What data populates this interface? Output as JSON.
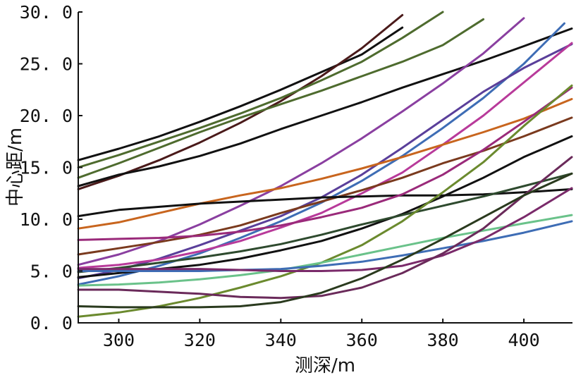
{
  "chart_data": {
    "type": "line",
    "xlabel": "测深/m",
    "ylabel": "中心距/m",
    "xlim": [
      290,
      412
    ],
    "ylim": [
      0,
      30
    ],
    "xticks": [
      300,
      320,
      340,
      360,
      380,
      400
    ],
    "yticks": [
      0,
      5,
      10,
      15,
      20,
      25,
      30
    ],
    "xtick_labels": [
      "300",
      "320",
      "340",
      "360",
      "380",
      "400"
    ],
    "ytick_labels": [
      "0. 0",
      "5. 0",
      "10. 0",
      "15. 0",
      "20. 0",
      "25. 0",
      "30. 0"
    ],
    "grid": false,
    "series": [
      {
        "color": "#111111",
        "x": [
          290,
          300,
          310,
          320,
          330,
          340,
          350,
          360,
          370
        ],
        "y": [
          15.7,
          16.8,
          18.0,
          19.4,
          20.9,
          22.5,
          24.2,
          25.9,
          28.5
        ]
      },
      {
        "color": "#4a1a1a",
        "x": [
          290,
          300,
          310,
          320,
          330,
          340,
          350,
          360,
          370
        ],
        "y": [
          12.9,
          14.2,
          15.7,
          17.4,
          19.3,
          21.4,
          23.8,
          26.5,
          29.7
        ]
      },
      {
        "color": "#4e6b2e",
        "x": [
          290,
          300,
          310,
          320,
          330,
          340,
          350,
          360,
          370,
          380
        ],
        "y": [
          15.0,
          16.2,
          17.5,
          18.8,
          20.2,
          21.7,
          23.4,
          25.2,
          27.5,
          30.0
        ]
      },
      {
        "color": "#4e6b2e",
        "x": [
          290,
          300,
          310,
          320,
          330,
          340,
          350,
          360,
          370,
          380,
          390
        ],
        "y": [
          14.0,
          15.4,
          16.9,
          18.4,
          19.8,
          21.1,
          22.4,
          23.8,
          25.2,
          26.8,
          29.3
        ]
      },
      {
        "color": "#111111",
        "x": [
          290,
          300,
          310,
          320,
          330,
          340,
          350,
          360,
          370,
          380,
          390,
          400,
          412
        ],
        "y": [
          13.2,
          14.3,
          15.1,
          16.1,
          17.3,
          18.7,
          20.0,
          21.3,
          22.7,
          24.0,
          25.3,
          26.7,
          28.4
        ]
      },
      {
        "color": "#8a3fa0",
        "x": [
          290,
          300,
          310,
          320,
          330,
          340,
          350,
          360,
          370,
          380,
          390,
          400
        ],
        "y": [
          5.6,
          6.6,
          7.9,
          9.5,
          11.3,
          13.2,
          15.4,
          17.8,
          20.4,
          23.1,
          26.0,
          29.4
        ]
      },
      {
        "color": "#3e6db5",
        "x": [
          290,
          300,
          310,
          320,
          330,
          340,
          350,
          360,
          370,
          380,
          390,
          400,
          410
        ],
        "y": [
          3.7,
          4.5,
          5.5,
          6.7,
          8.2,
          9.8,
          11.6,
          13.7,
          16.1,
          18.8,
          21.7,
          25.0,
          28.9
        ]
      },
      {
        "color": "#5a3f9a",
        "x": [
          290,
          300,
          310,
          320,
          330,
          340,
          350,
          360,
          370,
          380,
          390,
          400,
          412
        ],
        "y": [
          4.3,
          5.1,
          6.2,
          7.5,
          8.9,
          10.3,
          12.1,
          14.3,
          16.9,
          19.6,
          22.3,
          24.6,
          26.9
        ]
      },
      {
        "color": "#b83a9a",
        "x": [
          290,
          300,
          310,
          320,
          330,
          340,
          350,
          360,
          370,
          380,
          390,
          400,
          412
        ],
        "y": [
          5.3,
          5.6,
          6.1,
          6.9,
          7.9,
          9.2,
          10.6,
          12.5,
          14.5,
          17.2,
          20.0,
          23.2,
          27.0
        ]
      },
      {
        "color": "#c8651e",
        "x": [
          290,
          300,
          310,
          320,
          330,
          340,
          350,
          360,
          370,
          380,
          390,
          400,
          412
        ],
        "y": [
          9.1,
          9.7,
          10.6,
          11.5,
          12.3,
          13.0,
          13.9,
          14.9,
          16.0,
          17.2,
          18.4,
          19.7,
          21.6
        ]
      },
      {
        "color": "#7a3a1e",
        "x": [
          290,
          300,
          310,
          320,
          330,
          340,
          350,
          360,
          370,
          380,
          390,
          400,
          412
        ],
        "y": [
          6.6,
          7.2,
          7.8,
          8.5,
          9.4,
          10.6,
          11.7,
          12.8,
          14.0,
          15.4,
          16.6,
          18.0,
          19.8
        ]
      },
      {
        "color": "#111111",
        "x": [
          290,
          300,
          310,
          320,
          330,
          340,
          350,
          360,
          370,
          380,
          390,
          400,
          412
        ],
        "y": [
          10.3,
          10.9,
          11.2,
          11.5,
          11.7,
          11.9,
          12.1,
          12.2,
          12.3,
          12.3,
          12.4,
          12.6,
          12.9
        ]
      },
      {
        "color": "#9a2a7a",
        "x": [
          290,
          300,
          310,
          320,
          330,
          340,
          350,
          360,
          370,
          380,
          390,
          400,
          412
        ],
        "y": [
          8.0,
          8.1,
          8.2,
          8.4,
          8.8,
          9.4,
          10.2,
          11.1,
          12.4,
          14.3,
          16.7,
          19.4,
          22.7
        ]
      },
      {
        "color": "#111111",
        "x": [
          290,
          300,
          310,
          320,
          330,
          340,
          350,
          360,
          370,
          380,
          390,
          400,
          412
        ],
        "y": [
          4.4,
          4.8,
          5.2,
          5.6,
          6.2,
          7.0,
          7.9,
          9.1,
          10.5,
          12.2,
          14.0,
          16.0,
          18.0
        ]
      },
      {
        "color": "#2e4a2e",
        "x": [
          290,
          300,
          310,
          320,
          330,
          340,
          350,
          360,
          370,
          380,
          390,
          400,
          412
        ],
        "y": [
          4.9,
          5.3,
          5.8,
          6.3,
          6.9,
          7.6,
          8.5,
          9.5,
          10.4,
          11.3,
          12.2,
          13.2,
          14.4
        ]
      },
      {
        "color": "#6b8a2e",
        "x": [
          290,
          300,
          310,
          320,
          330,
          340,
          350,
          360,
          370,
          380,
          390,
          400,
          412
        ],
        "y": [
          0.6,
          1.0,
          1.6,
          2.4,
          3.4,
          4.5,
          5.8,
          7.5,
          9.8,
          12.6,
          15.5,
          19.0,
          22.9
        ]
      },
      {
        "color": "#6ac28a",
        "x": [
          290,
          300,
          310,
          320,
          330,
          340,
          350,
          360,
          370,
          380,
          390,
          400,
          412
        ],
        "y": [
          3.6,
          3.7,
          3.9,
          4.2,
          4.6,
          5.1,
          5.8,
          6.6,
          7.4,
          8.2,
          8.9,
          9.6,
          10.4
        ]
      },
      {
        "color": "#3e6db5",
        "x": [
          290,
          300,
          310,
          320,
          330,
          340,
          350,
          360,
          370,
          380,
          390,
          400,
          412
        ],
        "y": [
          5.0,
          5.0,
          5.0,
          5.0,
          5.1,
          5.2,
          5.5,
          5.9,
          6.5,
          7.2,
          7.9,
          8.7,
          9.8
        ]
      },
      {
        "color": "#7a2a6a",
        "x": [
          290,
          300,
          310,
          320,
          330,
          340,
          350,
          360,
          370,
          380,
          390,
          400,
          412
        ],
        "y": [
          5.2,
          5.2,
          5.2,
          5.2,
          5.1,
          5.0,
          5.0,
          5.1,
          5.5,
          6.5,
          8.1,
          10.2,
          13.0
        ]
      },
      {
        "color": "#6a2a5a",
        "x": [
          290,
          300,
          310,
          320,
          330,
          340,
          350,
          360,
          370,
          380,
          390,
          400,
          412
        ],
        "y": [
          3.2,
          3.2,
          3.0,
          2.8,
          2.5,
          2.4,
          2.6,
          3.4,
          4.8,
          6.7,
          9.1,
          12.3,
          16.0
        ]
      },
      {
        "color": "#2a3a1e",
        "x": [
          290,
          300,
          310,
          320,
          330,
          340,
          350,
          360,
          370,
          380,
          390,
          400,
          412
        ],
        "y": [
          1.6,
          1.5,
          1.5,
          1.5,
          1.6,
          2.0,
          2.9,
          4.3,
          6.1,
          8.1,
          10.2,
          12.3,
          14.4
        ]
      }
    ]
  }
}
